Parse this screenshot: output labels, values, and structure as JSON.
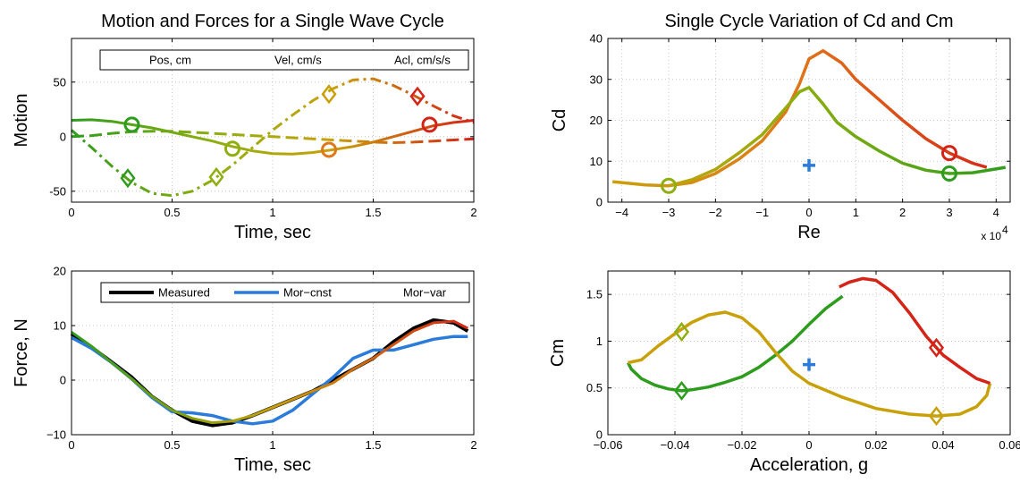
{
  "colors": {
    "green": "#2e9c1e",
    "olive": "#8fae10",
    "gold": "#c8a10a",
    "orange": "#e0781a",
    "red": "#d42418",
    "blue": "#2b7bdb",
    "black": "#000000"
  },
  "chart_data": [
    {
      "id": "motion",
      "type": "line",
      "title": "Motion and Forces for a Single Wave Cycle",
      "xlabel": "Time, sec",
      "ylabel": "Motion",
      "xlim": [
        0,
        2
      ],
      "ylim": [
        -60,
        90
      ],
      "xticks": [
        "0",
        "0.5",
        "1",
        "1.5",
        "2"
      ],
      "yticks": [
        "-50",
        "0",
        "50"
      ],
      "grid": true,
      "legend": "top",
      "legend_entries": [
        "Pos, cm",
        "Vel, cm/s",
        "Acl, cm/s/s"
      ],
      "series": [
        {
          "name": "Pos, cm",
          "style": "solid",
          "x": [
            0,
            0.1,
            0.2,
            0.3,
            0.4,
            0.5,
            0.6,
            0.7,
            0.8,
            0.9,
            1.0,
            1.1,
            1.2,
            1.3,
            1.4,
            1.5,
            1.6,
            1.7,
            1.8,
            1.9,
            2.0
          ],
          "y": [
            15,
            15.5,
            14,
            11,
            8,
            4,
            0,
            -4,
            -9,
            -13,
            -15.5,
            -16,
            -14.5,
            -12,
            -9,
            -5,
            0,
            5,
            10,
            13,
            15
          ]
        },
        {
          "name": "Vel, cm/s",
          "style": "dashed",
          "x": [
            0,
            0.1,
            0.2,
            0.3,
            0.4,
            0.5,
            0.6,
            0.7,
            0.8,
            0.9,
            1.0,
            1.1,
            1.2,
            1.3,
            1.4,
            1.5,
            1.6,
            1.7,
            1.8,
            1.9,
            2.0
          ],
          "y": [
            0,
            1,
            3,
            4.5,
            5,
            5,
            4,
            3,
            2,
            1,
            0,
            -1,
            -2,
            -3,
            -4,
            -5,
            -5.5,
            -5,
            -4,
            -3,
            -2
          ]
        },
        {
          "name": "Acl, cm/s/s",
          "style": "dashdot",
          "x": [
            0,
            0.1,
            0.2,
            0.3,
            0.4,
            0.5,
            0.6,
            0.7,
            0.8,
            0.9,
            1.0,
            1.1,
            1.2,
            1.3,
            1.4,
            1.5,
            1.6,
            1.7,
            1.8,
            1.9,
            2.0
          ],
          "y": [
            6,
            -10,
            -27,
            -42,
            -52,
            -54,
            -50,
            -40,
            -26,
            -10,
            6,
            20,
            33,
            44,
            52,
            53,
            47,
            38,
            28,
            19,
            13
          ]
        }
      ],
      "markers": [
        {
          "x": 0.3,
          "y": 11,
          "shape": "circle",
          "color": "green"
        },
        {
          "x": 0.8,
          "y": -11,
          "shape": "circle",
          "color": "olive"
        },
        {
          "x": 1.28,
          "y": -12,
          "shape": "circle",
          "color": "orange"
        },
        {
          "x": 1.78,
          "y": 11,
          "shape": "circle",
          "color": "red"
        },
        {
          "x": 0.28,
          "y": -38,
          "shape": "diamond",
          "color": "green"
        },
        {
          "x": 0.72,
          "y": -37,
          "shape": "diamond",
          "color": "olive"
        },
        {
          "x": 1.28,
          "y": 39,
          "shape": "diamond",
          "color": "gold"
        },
        {
          "x": 1.72,
          "y": 37,
          "shape": "diamond",
          "color": "red"
        }
      ]
    },
    {
      "id": "force",
      "type": "line",
      "title": "",
      "xlabel": "Time, sec",
      "ylabel": "Force, N",
      "xlim": [
        0,
        2
      ],
      "ylim": [
        -10,
        20
      ],
      "xticks": [
        "0",
        "0.5",
        "1",
        "1.5",
        "2"
      ],
      "yticks": [
        "−10",
        "0",
        "10",
        "20"
      ],
      "grid": true,
      "legend": "top",
      "legend_entries": [
        "Measured",
        "Mor−cnst",
        "Mor−var"
      ],
      "series": [
        {
          "name": "Measured",
          "x": [
            0,
            0.1,
            0.2,
            0.3,
            0.4,
            0.5,
            0.6,
            0.7,
            0.8,
            0.9,
            1.0,
            1.1,
            1.2,
            1.3,
            1.4,
            1.5,
            1.6,
            1.7,
            1.8,
            1.9,
            1.97
          ],
          "y": [
            8.5,
            6,
            3.3,
            0.5,
            -3,
            -5.5,
            -7.5,
            -8.3,
            -7.8,
            -6.5,
            -5,
            -3.5,
            -2,
            0,
            2,
            4,
            7,
            9.5,
            11,
            10.5,
            9
          ]
        },
        {
          "name": "Mor−cnst",
          "x": [
            0,
            0.1,
            0.2,
            0.3,
            0.4,
            0.5,
            0.6,
            0.7,
            0.8,
            0.9,
            1.0,
            1.1,
            1.2,
            1.3,
            1.4,
            1.5,
            1.6,
            1.7,
            1.8,
            1.9,
            1.97
          ],
          "y": [
            7.8,
            5.8,
            3.2,
            0.2,
            -3.2,
            -5.8,
            -6,
            -6.5,
            -7.5,
            -8,
            -7.5,
            -5.5,
            -2.5,
            0.5,
            4,
            5.5,
            5.5,
            6.5,
            7.5,
            8,
            8
          ]
        },
        {
          "name": "Mor−var",
          "x": [
            0,
            0.1,
            0.2,
            0.3,
            0.4,
            0.5,
            0.6,
            0.7,
            0.8,
            0.9,
            1.0,
            1.1,
            1.2,
            1.3,
            1.4,
            1.5,
            1.6,
            1.7,
            1.8,
            1.9,
            1.97
          ],
          "y": [
            8.8,
            6.2,
            3.2,
            0.2,
            -3,
            -5.5,
            -7,
            -7.8,
            -7.5,
            -6.5,
            -5,
            -3.5,
            -2,
            -0.5,
            2,
            4,
            6.5,
            9,
            10.5,
            10.8,
            9.5
          ]
        }
      ]
    },
    {
      "id": "cd",
      "type": "line",
      "title": "Single Cycle Variation of Cd and Cm",
      "xlabel": "Re",
      "ylabel": "Cd",
      "xlim": [
        -4.3,
        4.3
      ],
      "ylim": [
        0,
        40
      ],
      "xticks": [
        "−4",
        "−3",
        "−2",
        "−1",
        "0",
        "1",
        "2",
        "3",
        "4"
      ],
      "yticks": [
        "0",
        "10",
        "20",
        "30",
        "40"
      ],
      "x_multiplier": "x 10",
      "x_multiplier_exp": "4",
      "grid": true,
      "series": [
        {
          "name": "",
          "x": [
            -4.2,
            -3.5,
            -3.0,
            -2.5,
            -2.0,
            -1.5,
            -1.0,
            -0.5,
            -0.2,
            0.0,
            0.3,
            0.7,
            1.0,
            1.5,
            2.0,
            2.5,
            3.0,
            3.5,
            3.8
          ],
          "y": [
            5,
            4.2,
            4,
            4.8,
            7,
            10.5,
            15,
            22,
            29,
            35,
            37,
            34,
            30,
            25,
            20,
            15.5,
            12,
            9.5,
            8.5
          ]
        },
        {
          "name": "",
          "x": [
            -3.0,
            -2.5,
            -2.0,
            -1.5,
            -1.0,
            -0.5,
            -0.2,
            0.0,
            0.3,
            0.6,
            1.0,
            1.5,
            2.0,
            2.5,
            3.0,
            3.5,
            4.2
          ],
          "y": [
            4,
            5.5,
            8,
            12,
            16.5,
            23,
            27,
            28,
            24,
            19.5,
            16,
            12.5,
            9.5,
            7.8,
            7,
            7.2,
            8.5
          ]
        }
      ],
      "markers": [
        {
          "x": -3.0,
          "y": 4,
          "shape": "circle",
          "color": "olive"
        },
        {
          "x": 3.0,
          "y": 7,
          "shape": "circle",
          "color": "green"
        },
        {
          "x": 3.0,
          "y": 12,
          "shape": "circle",
          "color": "red"
        },
        {
          "x": 0.0,
          "y": 9,
          "shape": "plus",
          "color": "blue"
        }
      ]
    },
    {
      "id": "cm",
      "type": "line",
      "title": "",
      "xlabel": "Acceleration, g",
      "ylabel": "Cm",
      "xlim": [
        -0.06,
        0.06
      ],
      "ylim": [
        0,
        1.75
      ],
      "xticks": [
        "−0.06",
        "−0.04",
        "−0.02",
        "0",
        "0.02",
        "0.04",
        "0.06"
      ],
      "yticks": [
        "0",
        "0.5",
        "1",
        "1.5"
      ],
      "grid": true,
      "series": [
        {
          "name": "",
          "x": [
            0.01,
            0.005,
            0.0,
            -0.005,
            -0.01,
            -0.015,
            -0.02,
            -0.025,
            -0.03,
            -0.035,
            -0.038,
            -0.042,
            -0.046,
            -0.05,
            -0.053,
            -0.054
          ],
          "y": [
            1.48,
            1.35,
            1.18,
            1.0,
            0.85,
            0.72,
            0.62,
            0.56,
            0.51,
            0.48,
            0.47,
            0.49,
            0.53,
            0.6,
            0.7,
            0.77
          ]
        },
        {
          "name": "",
          "x": [
            -0.054,
            -0.05,
            -0.045,
            -0.04,
            -0.035,
            -0.03,
            -0.025,
            -0.02,
            -0.015,
            -0.01,
            -0.005,
            0.0,
            0.01,
            0.02,
            0.03,
            0.038,
            0.045,
            0.05,
            0.053,
            0.054
          ],
          "y": [
            0.77,
            0.8,
            0.95,
            1.08,
            1.2,
            1.28,
            1.31,
            1.25,
            1.1,
            0.88,
            0.68,
            0.55,
            0.4,
            0.28,
            0.22,
            0.2,
            0.22,
            0.3,
            0.42,
            0.55
          ]
        },
        {
          "name": "",
          "x": [
            0.054,
            0.05,
            0.045,
            0.04,
            0.035,
            0.03,
            0.025,
            0.02,
            0.016,
            0.012,
            0.009
          ],
          "y": [
            0.55,
            0.6,
            0.72,
            0.85,
            1.05,
            1.3,
            1.52,
            1.65,
            1.67,
            1.63,
            1.58
          ]
        }
      ],
      "markers": [
        {
          "x": -0.038,
          "y": 1.1,
          "shape": "diamond",
          "color": "olive"
        },
        {
          "x": -0.038,
          "y": 0.47,
          "shape": "diamond",
          "color": "green"
        },
        {
          "x": 0.038,
          "y": 0.93,
          "shape": "diamond",
          "color": "red"
        },
        {
          "x": 0.038,
          "y": 0.2,
          "shape": "diamond",
          "color": "gold"
        },
        {
          "x": 0.0,
          "y": 0.75,
          "shape": "plus",
          "color": "blue"
        }
      ]
    }
  ]
}
